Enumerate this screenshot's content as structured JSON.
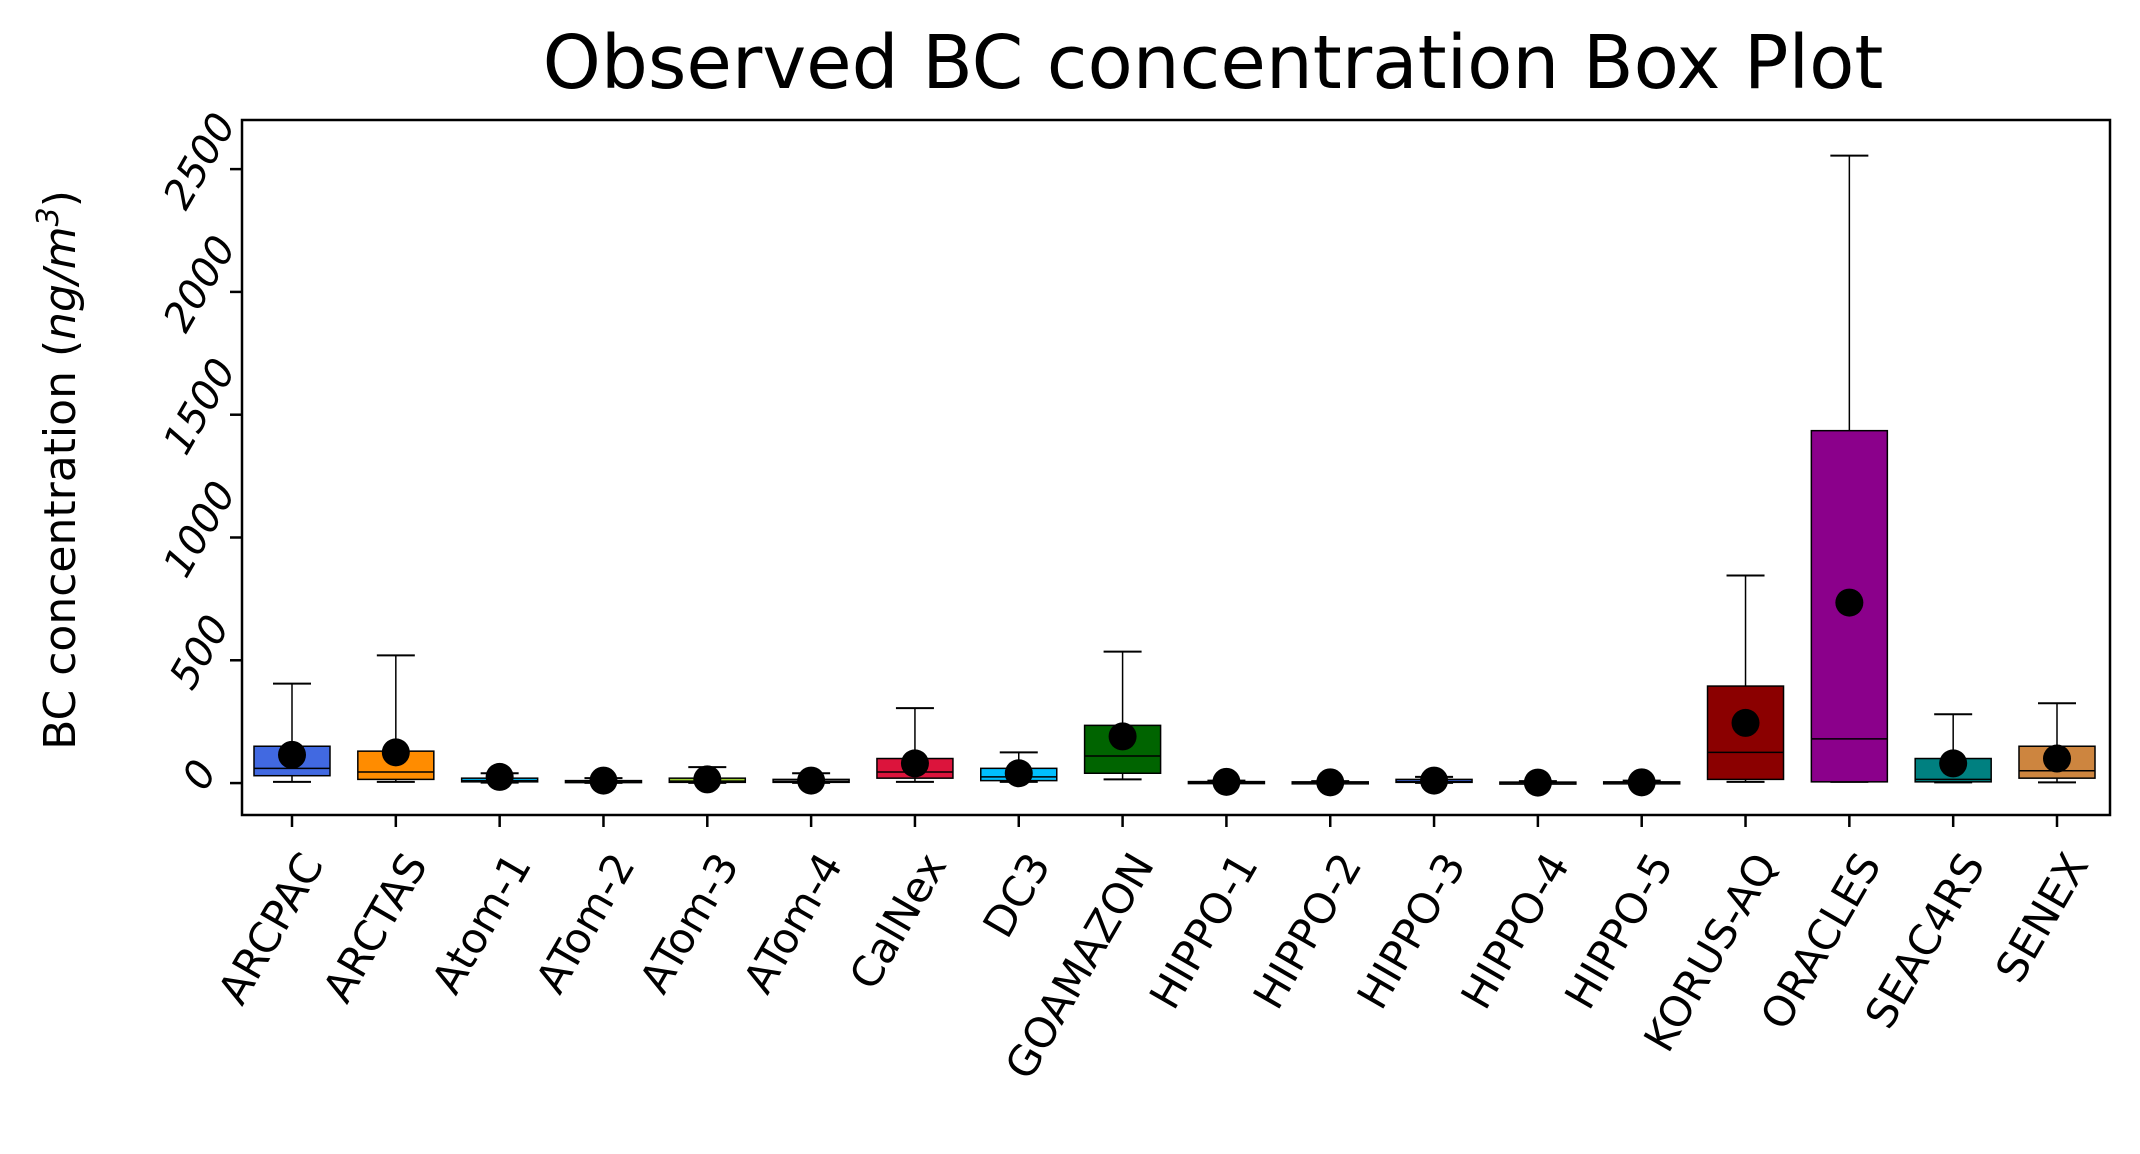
{
  "chart_data": {
    "type": "box",
    "title": "Observed BC concentration Box Plot",
    "xlabel": "",
    "ylabel_prefix": "BC concentration (",
    "ylabel_unit_italic": "ng/m",
    "ylabel_superscript": "3",
    "ylabel_suffix": ")",
    "ylim": [
      -130,
      2700
    ],
    "yticks": [
      0,
      500,
      1000,
      1500,
      2000,
      2500
    ],
    "ytick_labels": [
      "0",
      "500",
      "1000",
      "1500",
      "2000",
      "2500"
    ],
    "grid": false,
    "categories": [
      "ARCPAC",
      "ARCTAS",
      "Atom-1",
      "ATom-2",
      "ATom-3",
      "ATom-4",
      "CalNex",
      "DC3",
      "GOAMAZON",
      "HIPPO-1",
      "HIPPO-2",
      "HIPPO-3",
      "HIPPO-4",
      "HIPPO-5",
      "KORUS-AQ",
      "ORACLES",
      "SEAC4RS",
      "SENEX"
    ],
    "colors": [
      "#4169e1",
      "#ff8c00",
      "#00bfff",
      "#2e8b57",
      "#9acd32",
      "#696969",
      "#dc143c",
      "#00bfff",
      "#006400",
      "#4b0082",
      "#808080",
      "#4169e1",
      "#808080",
      "#808080",
      "#8b0000",
      "#8b008b",
      "#008080",
      "#cd853f"
    ],
    "boxes": [
      {
        "whisker_low": 5,
        "q1": 30,
        "median": 60,
        "q3": 150,
        "whisker_high": 405,
        "mean": 115
      },
      {
        "whisker_low": 5,
        "q1": 15,
        "median": 45,
        "q3": 130,
        "whisker_high": 520,
        "mean": 125
      },
      {
        "whisker_low": 2,
        "q1": 5,
        "median": 10,
        "q3": 20,
        "whisker_high": 40,
        "mean": 25
      },
      {
        "whisker_low": 1,
        "q1": 3,
        "median": 5,
        "q3": 10,
        "whisker_high": 20,
        "mean": 10
      },
      {
        "whisker_low": 1,
        "q1": 3,
        "median": 8,
        "q3": 20,
        "whisker_high": 65,
        "mean": 15
      },
      {
        "whisker_low": 1,
        "q1": 3,
        "median": 6,
        "q3": 15,
        "whisker_high": 40,
        "mean": 10
      },
      {
        "whisker_low": 5,
        "q1": 20,
        "median": 45,
        "q3": 100,
        "whisker_high": 305,
        "mean": 80
      },
      {
        "whisker_low": 5,
        "q1": 10,
        "median": 25,
        "q3": 60,
        "whisker_high": 125,
        "mean": 40
      },
      {
        "whisker_low": 15,
        "q1": 40,
        "median": 110,
        "q3": 235,
        "whisker_high": 535,
        "mean": 190
      },
      {
        "whisker_low": 1,
        "q1": 2,
        "median": 3,
        "q3": 6,
        "whisker_high": 10,
        "mean": 5
      },
      {
        "whisker_low": 1,
        "q1": 2,
        "median": 3,
        "q3": 5,
        "whisker_high": 8,
        "mean": 3
      },
      {
        "whisker_low": 1,
        "q1": 3,
        "median": 6,
        "q3": 15,
        "whisker_high": 25,
        "mean": 10
      },
      {
        "whisker_low": 1,
        "q1": 2,
        "median": 2,
        "q3": 4,
        "whisker_high": 8,
        "mean": 2
      },
      {
        "whisker_low": 1,
        "q1": 2,
        "median": 3,
        "q3": 5,
        "whisker_high": 10,
        "mean": 3
      },
      {
        "whisker_low": 5,
        "q1": 15,
        "median": 125,
        "q3": 395,
        "whisker_high": 845,
        "mean": 245
      },
      {
        "whisker_low": 5,
        "q1": 5,
        "median": 180,
        "q3": 1435,
        "whisker_high": 2555,
        "mean": 735
      },
      {
        "whisker_low": 3,
        "q1": 5,
        "median": 15,
        "q3": 100,
        "whisker_high": 280,
        "mean": 80
      },
      {
        "whisker_low": 3,
        "q1": 20,
        "median": 50,
        "q3": 150,
        "whisker_high": 325,
        "mean": 100
      }
    ]
  }
}
